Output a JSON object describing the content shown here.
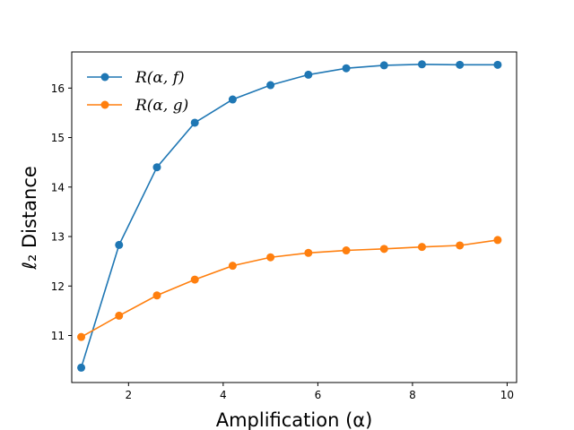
{
  "chart_data": {
    "type": "line",
    "title": "",
    "xlabel": "Amplification (α)",
    "ylabel": "ℓ₂ Distance",
    "xlim": [
      0.8,
      10.2
    ],
    "ylim": [
      10.05,
      16.73
    ],
    "xticks": [
      2,
      4,
      6,
      8,
      10
    ],
    "yticks": [
      11,
      12,
      13,
      14,
      15,
      16
    ],
    "grid": false,
    "legend_position": "top-left",
    "x": [
      1.0,
      1.8,
      2.6,
      3.4,
      4.2,
      5.0,
      5.8,
      6.6,
      7.4,
      8.2,
      9.0,
      9.8
    ],
    "series": [
      {
        "name": "R(α, f)",
        "color": "#1f77b4",
        "values": [
          10.35,
          12.83,
          14.4,
          15.3,
          15.77,
          16.06,
          16.27,
          16.4,
          16.46,
          16.48,
          16.47,
          16.47
        ]
      },
      {
        "name": "R(α, g)",
        "color": "#ff7f0e",
        "values": [
          10.97,
          11.4,
          11.81,
          12.13,
          12.41,
          12.58,
          12.67,
          12.72,
          12.75,
          12.79,
          12.82,
          12.93
        ]
      }
    ]
  }
}
